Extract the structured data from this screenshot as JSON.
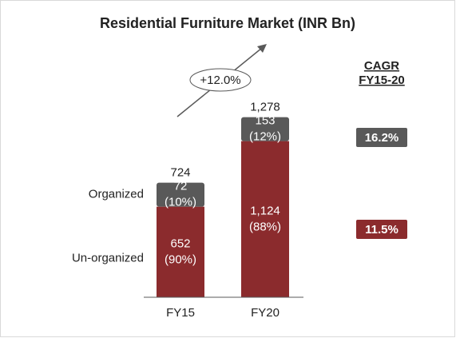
{
  "chart_data": {
    "type": "stacked_bar",
    "title": "Residential Furniture Market (INR Bn)",
    "categories": [
      "FY15",
      "FY20"
    ],
    "series": [
      {
        "name": "Un-organized",
        "color": "#8b2b2d",
        "values": [
          652,
          1124
        ],
        "value_labels": [
          "652",
          "1,124"
        ],
        "shares": [
          90,
          88
        ],
        "share_labels": [
          "(90%)",
          "(88%)"
        ],
        "cagr": 11.5,
        "cagr_label": "11.5%"
      },
      {
        "name": "Organized",
        "color": "#595959",
        "values": [
          72,
          153
        ],
        "value_labels": [
          "72",
          "153"
        ],
        "shares": [
          10,
          12
        ],
        "share_labels": [
          "(10%)",
          "(12%)"
        ],
        "cagr": 16.2,
        "cagr_label": "16.2%"
      }
    ],
    "totals": [
      724,
      1278
    ],
    "total_labels": [
      "724",
      "1,278"
    ],
    "growth_label": "+12.0%",
    "cagr_title": [
      "CAGR",
      "FY15-20"
    ]
  }
}
